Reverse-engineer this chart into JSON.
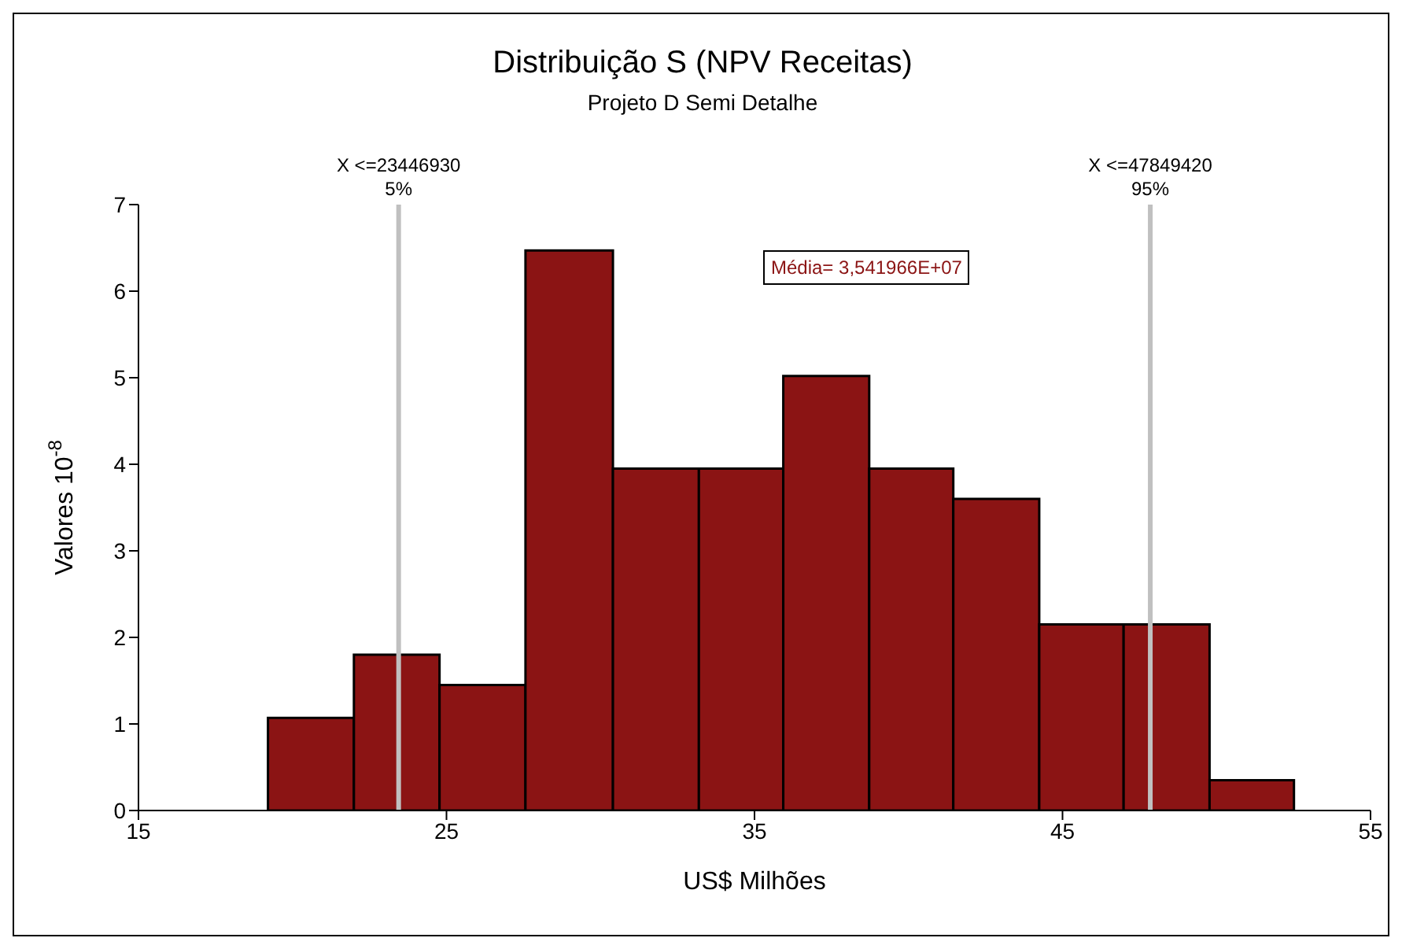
{
  "chart_data": {
    "type": "histogram",
    "title": "Distribuição S (NPV Receitas)",
    "subtitle": "Projeto D Semi Detalhe",
    "xlabel": "US$ Milhões",
    "ylabel": "Valores 10$^{-8}$",
    "bins": [
      19.21,
      22.0,
      24.78,
      27.57,
      30.41,
      33.2,
      35.94,
      38.73,
      41.46,
      44.25,
      46.99,
      49.78,
      52.52
    ],
    "values": [
      1.07,
      1.8,
      1.45,
      6.47,
      3.95,
      3.95,
      5.02,
      3.95,
      3.6,
      2.15,
      2.15,
      0.35
    ],
    "color": "#8b1414",
    "xlim": [
      15,
      55
    ],
    "xticks": [
      15,
      25,
      35,
      45,
      55
    ],
    "ylim": [
      0,
      7
    ],
    "yticks": [
      0,
      1,
      2,
      3,
      4,
      5,
      6,
      7
    ],
    "grid": false,
    "legend": false,
    "ref_lines": [
      {
        "axis": "x",
        "value": 23.44693,
        "label": "X <=23446930\n5%",
        "color": "#c0c0c0"
      },
      {
        "axis": "x",
        "value": 47.84942,
        "label": "X <=47849420\n95%",
        "color": "#c0c0c0"
      }
    ],
    "annotations": [
      "Média= 3,541966E+07"
    ]
  }
}
